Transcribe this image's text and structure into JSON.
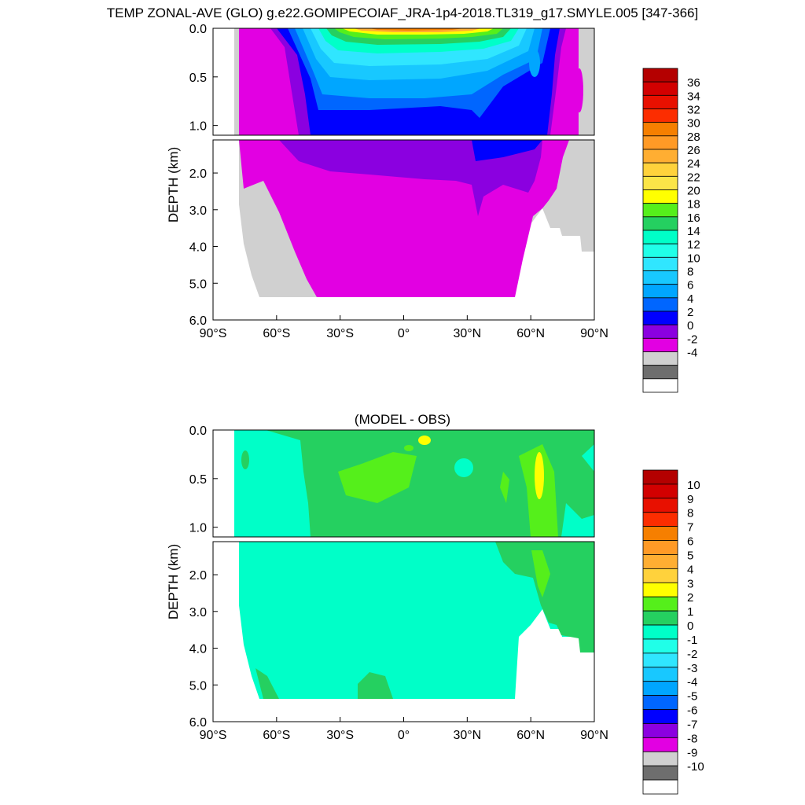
{
  "figure_title": "TEMP ZONAL-AVE (GLO) g.e22.GOMIPECOIAF_JRA-1p4-2018.TL319_g17.SMYLE.005 [347-366]",
  "chart_data": [
    {
      "type": "heatmap",
      "title": "",
      "ylabel": "DEPTH (km)",
      "xlabel": "",
      "x_ticks": [
        "90°S",
        "60°S",
        "30°S",
        "0°",
        "30°N",
        "60°N",
        "90°N"
      ],
      "x_tick_values": [
        -90,
        -60,
        -30,
        0,
        30,
        60,
        90
      ],
      "upper_y_ticks": [
        "0.0",
        "0.5",
        "1.0"
      ],
      "upper_y_values": [
        0,
        0.5,
        1.0
      ],
      "lower_y_ticks": [
        "2.0",
        "3.0",
        "4.0",
        "5.0",
        "6.0"
      ],
      "lower_y_values": [
        2,
        3,
        4,
        5,
        6
      ],
      "xlim": [
        -90,
        90
      ],
      "ylim_upper": [
        0,
        1.1
      ],
      "ylim_lower": [
        1.1,
        6.0
      ],
      "colorbar": {
        "labels": [
          "36",
          "34",
          "32",
          "30",
          "28",
          "26",
          "24",
          "22",
          "20",
          "18",
          "16",
          "14",
          "12",
          "10",
          "8",
          "6",
          "4",
          "2",
          "0",
          "-2",
          "-4"
        ],
        "colors": [
          "#b40000",
          "#d20000",
          "#e81000",
          "#fc2d00",
          "#f67f00",
          "#ff9a26",
          "#ffae32",
          "#ffd23c",
          "#fbe548",
          "#ffff00",
          "#55ef1b",
          "#25d060",
          "#00ffc8",
          "#20ffe8",
          "#30e6ff",
          "#18c8ff",
          "#00a6ff",
          "#0066ff",
          "#0000ff",
          "#8b00e0",
          "#e200e2",
          "#d0d0d0",
          "#6e6e6e",
          "#ffffff"
        ]
      }
    },
    {
      "type": "heatmap",
      "title": "(MODEL - OBS)",
      "ylabel": "DEPTH (km)",
      "xlabel": "",
      "x_ticks": [
        "90°S",
        "60°S",
        "30°S",
        "0°",
        "30°N",
        "60°N",
        "90°N"
      ],
      "x_tick_values": [
        -90,
        -60,
        -30,
        0,
        30,
        60,
        90
      ],
      "upper_y_ticks": [
        "0.0",
        "0.5",
        "1.0"
      ],
      "upper_y_values": [
        0,
        0.5,
        1.0
      ],
      "lower_y_ticks": [
        "2.0",
        "3.0",
        "4.0",
        "5.0",
        "6.0"
      ],
      "lower_y_values": [
        2,
        3,
        4,
        5,
        6
      ],
      "xlim": [
        -90,
        90
      ],
      "ylim_upper": [
        0,
        1.1
      ],
      "ylim_lower": [
        1.1,
        6.0
      ],
      "colorbar": {
        "labels": [
          "10",
          "9",
          "8",
          "7",
          "6",
          "5",
          "4",
          "3",
          "2",
          "1",
          "0",
          "-1",
          "-2",
          "-3",
          "-4",
          "-5",
          "-6",
          "-7",
          "-8",
          "-9",
          "-10"
        ],
        "colors": [
          "#b40000",
          "#d20000",
          "#e81000",
          "#fc2d00",
          "#f67f00",
          "#ff9a26",
          "#ffae32",
          "#ffd23c",
          "#ffff00",
          "#55ef1b",
          "#25d060",
          "#00ffc8",
          "#20ffe8",
          "#30e6ff",
          "#18c8ff",
          "#00a6ff",
          "#0066ff",
          "#0000ff",
          "#8b00e0",
          "#e200e2",
          "#d0d0d0",
          "#6e6e6e",
          "#ffffff"
        ]
      }
    }
  ]
}
